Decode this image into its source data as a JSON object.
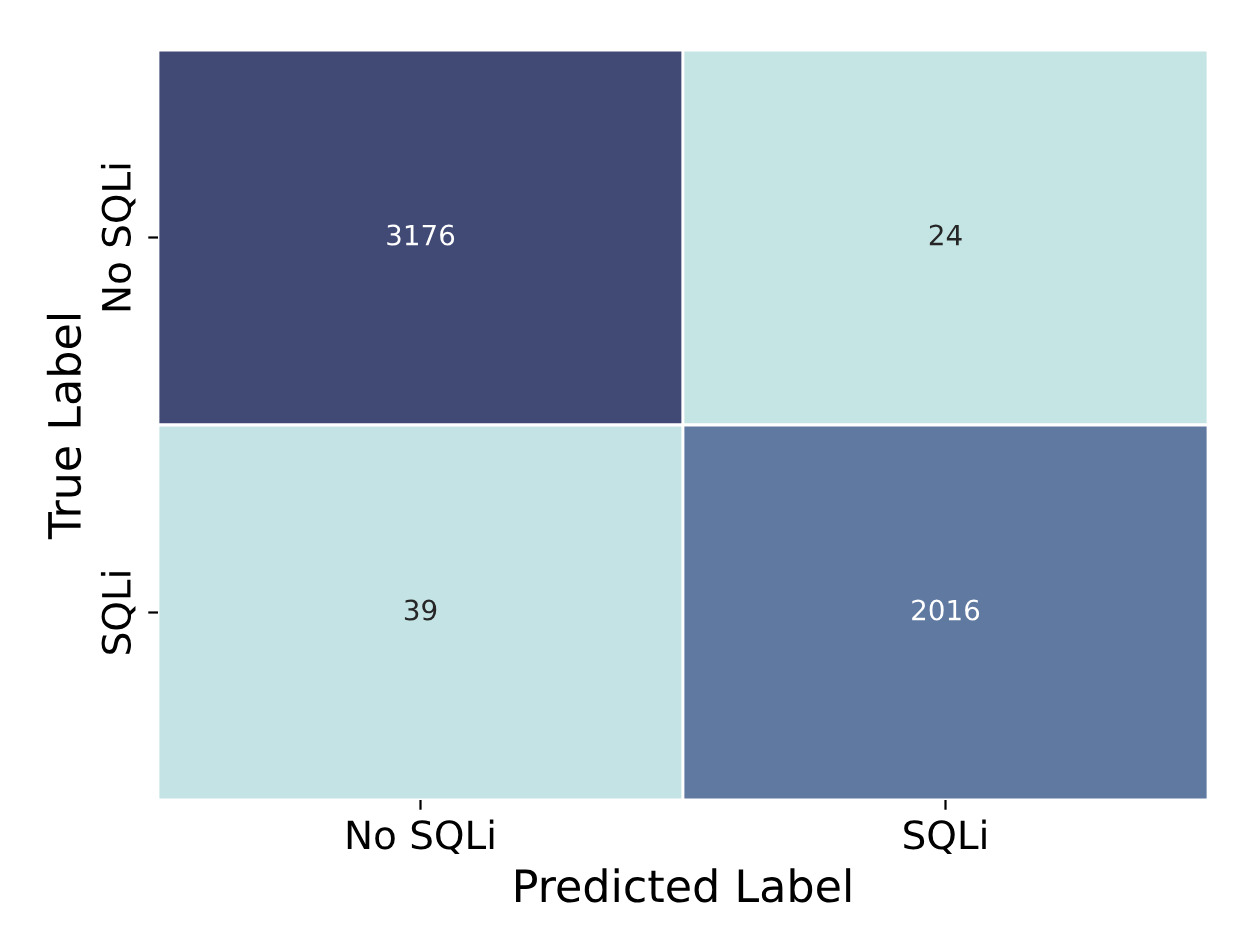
{
  "chart_data": {
    "type": "heatmap",
    "xlabel": "Predicted Label",
    "ylabel": "True Label",
    "categories": [
      "No SQLi",
      "SQLi"
    ],
    "y_categories": [
      "No SQLi",
      "SQLi"
    ],
    "data_labels": true,
    "cells": [
      [
        3176,
        24
      ],
      [
        39,
        2016
      ]
    ]
  }
}
